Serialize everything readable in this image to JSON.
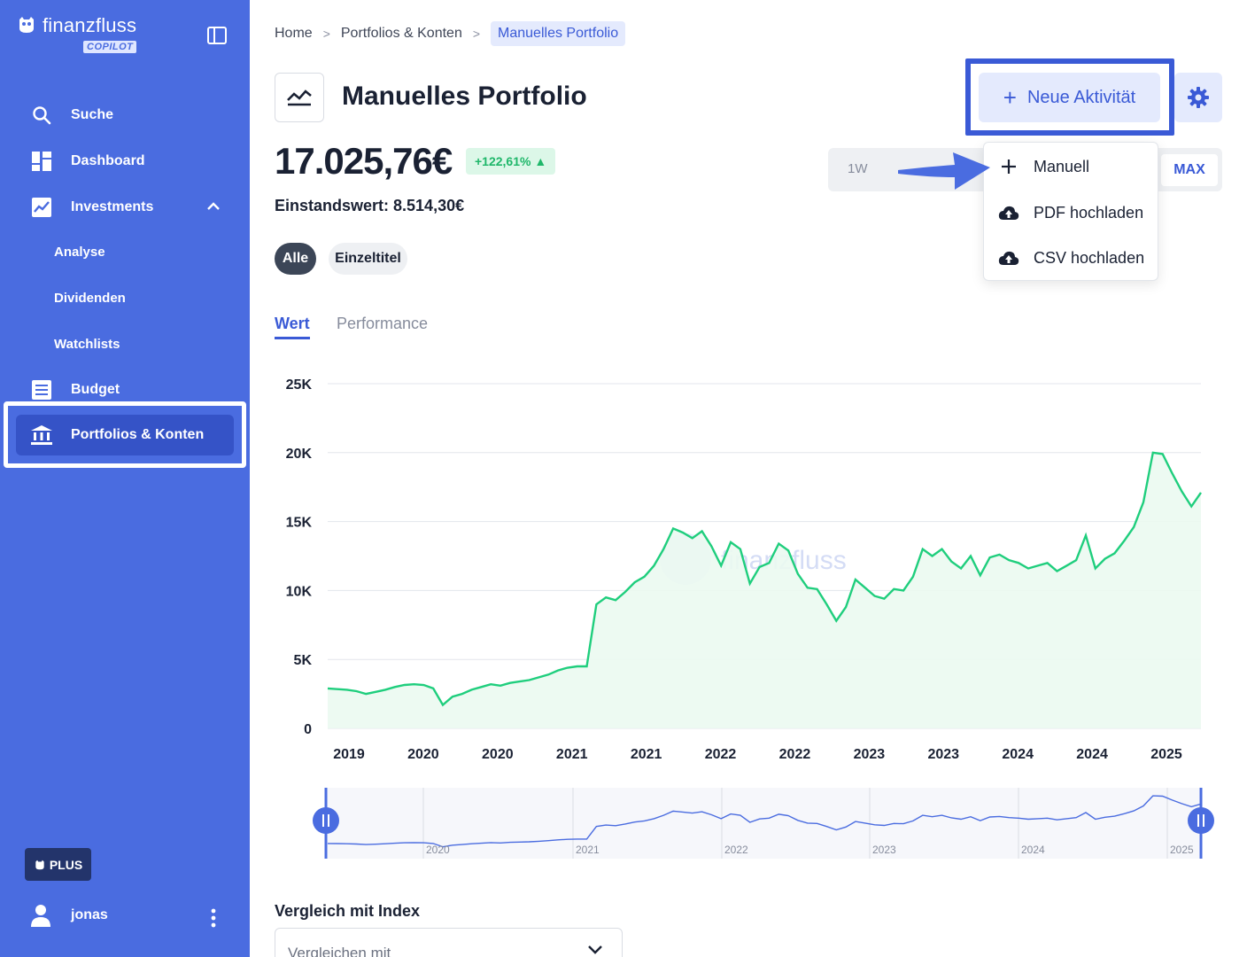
{
  "brand": {
    "name": "finanzfluss",
    "badge": "COPILOT"
  },
  "sidebar": {
    "items": [
      {
        "label": "Suche",
        "icon": "search-icon"
      },
      {
        "label": "Dashboard",
        "icon": "dashboard-icon"
      },
      {
        "label": "Investments",
        "icon": "chart-line-icon",
        "expanded": true
      },
      {
        "label": "Budget",
        "icon": "list-icon"
      },
      {
        "label": "Portfolios & Konten",
        "icon": "bank-icon",
        "active": true
      }
    ],
    "subitems": [
      {
        "label": "Analyse"
      },
      {
        "label": "Dividenden"
      },
      {
        "label": "Watchlists"
      }
    ],
    "plus_label": "PLUS",
    "user": {
      "name": "jonas"
    }
  },
  "breadcrumb": [
    "Home",
    "Portfolios & Konten",
    "Manuelles Portfolio"
  ],
  "page": {
    "title": "Manuelles Portfolio",
    "value": "17.025,76€",
    "gain": "+122,61% ▲",
    "cost_basis": "Einstandswert: 8.514,30€"
  },
  "actions": {
    "new_activity": "Neue Aktivität"
  },
  "dropdown": {
    "items": [
      {
        "label": "Manuell",
        "icon": "plus-icon"
      },
      {
        "label": "PDF hochladen",
        "icon": "cloud-upload-icon"
      },
      {
        "label": "CSV hochladen",
        "icon": "cloud-upload-icon"
      }
    ]
  },
  "range": {
    "first": "1W",
    "selected": "MAX"
  },
  "filters": {
    "all": "Alle",
    "single": "Einzeltitel"
  },
  "tabs": {
    "value": "Wert",
    "performance": "Performance"
  },
  "watermark": "finanzfluss",
  "compare": {
    "label": "Vergleich mit Index",
    "placeholder": "Vergleichen mit"
  },
  "colors": {
    "accent": "#4a6ce0",
    "line": "#1fce7d",
    "gain_bg": "#dcf7e8"
  },
  "chart_data": {
    "type": "area",
    "y_ticks": [
      "25K",
      "20K",
      "15K",
      "10K",
      "5K",
      "0"
    ],
    "ylim": [
      0,
      25000
    ],
    "x_ticks": [
      "2019",
      "2020",
      "2020",
      "2021",
      "2021",
      "2022",
      "2022",
      "2023",
      "2023",
      "2024",
      "2024",
      "2025"
    ],
    "navigator_ticks": [
      "2020",
      "2021",
      "2022",
      "2023",
      "2024",
      "2025"
    ],
    "series": [
      {
        "values": [
          2900,
          2850,
          2800,
          2700,
          2500,
          2650,
          2800,
          3000,
          3150,
          3200,
          3150,
          2900,
          1700,
          2300,
          2500,
          2800,
          3000,
          3200,
          3100,
          3300,
          3400,
          3500,
          3700,
          3900,
          4200,
          4400,
          4500,
          4500,
          9000,
          9500,
          9300,
          9900,
          10600,
          11000,
          11800,
          13000,
          14500,
          14200,
          13800,
          14300,
          13200,
          11800,
          13500,
          13000,
          10500,
          11700,
          12000,
          13400,
          12900,
          11200,
          10200,
          10100,
          9000,
          7800,
          8800,
          10800,
          10200,
          9600,
          9400,
          10100,
          10000,
          11000,
          13000,
          12500,
          13000,
          12100,
          11600,
          12500,
          11100,
          12400,
          12600,
          12200,
          12000,
          11600,
          11800,
          12000,
          11400,
          11800,
          12200,
          14000,
          11600,
          12300,
          12700,
          13600,
          14600,
          16400,
          20000,
          19900,
          18500,
          17200,
          16100,
          17100
        ]
      }
    ]
  }
}
